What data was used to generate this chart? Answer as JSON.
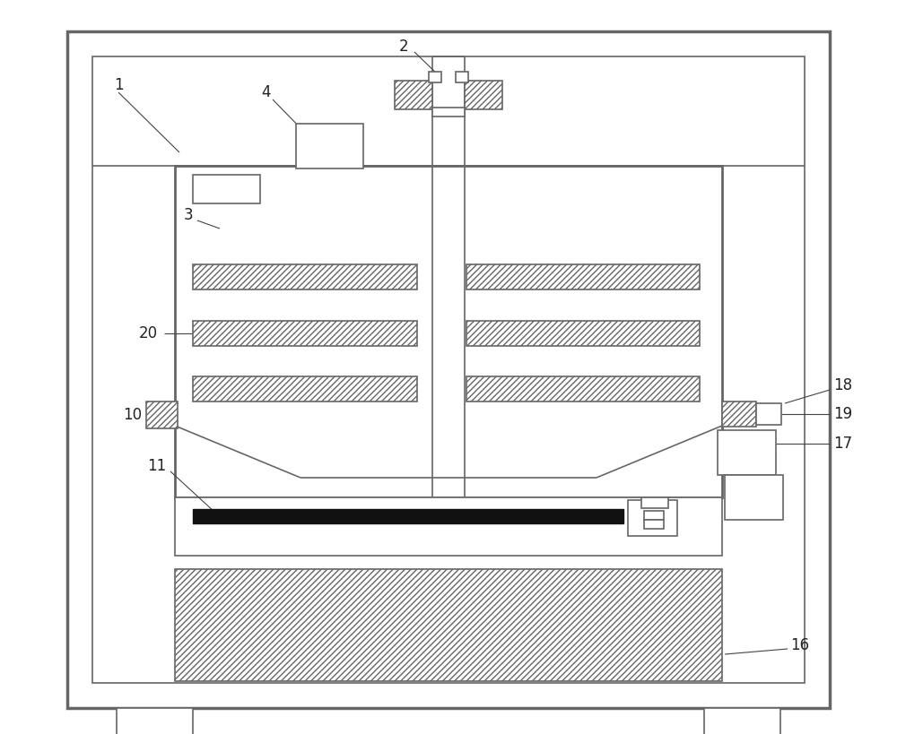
{
  "bg_color": "#ffffff",
  "lc": "#666666",
  "lw": 1.2,
  "tlw": 2.0,
  "blw": 2.5,
  "label_fs": 12,
  "label_color": "#222222",
  "leader_lw": 0.8,
  "leader_color": "#444444"
}
